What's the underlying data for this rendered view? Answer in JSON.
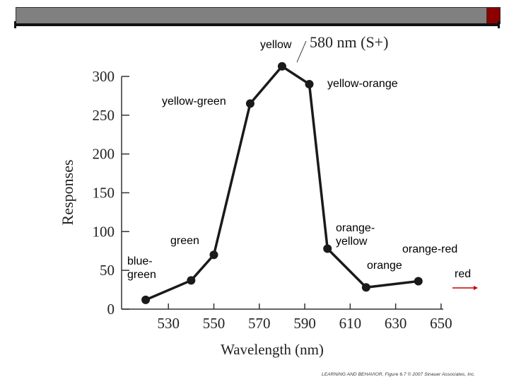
{
  "slide": {
    "footer": "LEARNING AND BEHAVIOR, Figure 6.7 © 2007 Sinauer Associates, Inc."
  },
  "chart_data": {
    "type": "line",
    "title": "580 nm (S+)",
    "xlabel": "Wavelength (nm)",
    "ylabel": "Responses",
    "xlim": [
      515,
      655
    ],
    "ylim": [
      0,
      300
    ],
    "xticks": [
      530,
      550,
      570,
      590,
      610,
      630,
      650
    ],
    "yticks": [
      0,
      50,
      100,
      150,
      200,
      250,
      300
    ],
    "x": [
      520,
      540,
      550,
      566,
      580,
      592,
      600,
      617,
      640
    ],
    "y": [
      12,
      37,
      70,
      265,
      313,
      290,
      78,
      28,
      36
    ],
    "line_color": "#1a1a1a",
    "grid": false
  },
  "annotations": [
    {
      "id": "yellow",
      "lines": [
        "yellow"
      ],
      "color": "#000000"
    },
    {
      "id": "yellow-orange",
      "lines": [
        "yellow-orange"
      ],
      "color": "#000000"
    },
    {
      "id": "yellow-green",
      "lines": [
        "yellow-green"
      ],
      "color": "#000000"
    },
    {
      "id": "green",
      "lines": [
        "green"
      ],
      "color": "#000000"
    },
    {
      "id": "blue-green",
      "lines": [
        "blue-",
        "green"
      ],
      "color": "#000000"
    },
    {
      "id": "orange-yellow",
      "lines": [
        "orange-",
        "yellow"
      ],
      "color": "#000000"
    },
    {
      "id": "orange-red",
      "lines": [
        "orange-red"
      ],
      "color": "#000000"
    },
    {
      "id": "orange",
      "lines": [
        "orange"
      ],
      "color": "#000000"
    },
    {
      "id": "red",
      "lines": [
        "red"
      ],
      "color": "#000000"
    }
  ],
  "red_arrow_color": "#cc0000"
}
